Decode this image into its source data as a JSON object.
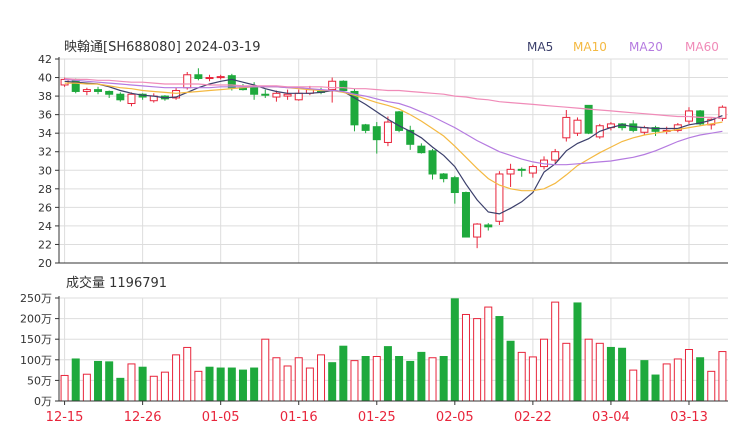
{
  "header": {
    "title": "映翰通[SH688080] 2024-03-19"
  },
  "legend": [
    {
      "label": "MA5",
      "color": "#3b3f6b"
    },
    {
      "label": "MA10",
      "color": "#f4b942"
    },
    {
      "label": "MA20",
      "color": "#b57be0"
    },
    {
      "label": "MA60",
      "color": "#f08bb8"
    }
  ],
  "colors": {
    "up": "#e8253b",
    "down": "#1ea93c",
    "grid": "#dddddd",
    "axis": "#333333"
  },
  "volume_title": {
    "label": "成交量 1196791"
  },
  "chart_data": [
    {
      "type": "candlestick",
      "ylim": [
        20,
        42
      ],
      "yticks": [
        20,
        22,
        24,
        26,
        28,
        30,
        32,
        34,
        36,
        38,
        40,
        42
      ],
      "xtick_labels": [
        "12-15",
        "12-26",
        "01-05",
        "01-16",
        "01-25",
        "02-05",
        "02-22",
        "03-04",
        "03-13"
      ],
      "xtick_index": [
        0,
        7,
        14,
        21,
        28,
        35,
        42,
        49,
        56
      ],
      "ohlc": [
        [
          39.2,
          40.0,
          39.0,
          39.8
        ],
        [
          39.8,
          39.9,
          38.3,
          38.5
        ],
        [
          38.5,
          38.9,
          38.1,
          38.7
        ],
        [
          38.7,
          39.0,
          38.2,
          38.5
        ],
        [
          38.5,
          38.6,
          37.8,
          38.2
        ],
        [
          38.2,
          38.4,
          37.4,
          37.6
        ],
        [
          37.2,
          38.4,
          36.9,
          38.2
        ],
        [
          38.2,
          38.3,
          37.6,
          37.9
        ],
        [
          37.5,
          38.3,
          37.3,
          38.0
        ],
        [
          38.0,
          38.1,
          37.5,
          37.7
        ],
        [
          37.8,
          38.9,
          37.6,
          38.6
        ],
        [
          38.9,
          40.6,
          38.7,
          40.3
        ],
        [
          40.3,
          41.0,
          39.7,
          39.9
        ],
        [
          39.9,
          40.3,
          39.6,
          40.0
        ],
        [
          40.1,
          40.3,
          39.8,
          40.1
        ],
        [
          40.2,
          40.4,
          38.6,
          38.9
        ],
        [
          38.9,
          39.3,
          38.6,
          38.7
        ],
        [
          38.9,
          39.5,
          37.6,
          38.2
        ],
        [
          38.2,
          38.7,
          37.8,
          38.1
        ],
        [
          37.9,
          38.6,
          37.4,
          38.3
        ],
        [
          38.0,
          38.7,
          37.6,
          38.2
        ],
        [
          37.6,
          38.7,
          37.5,
          38.3
        ],
        [
          38.3,
          39.1,
          38.1,
          38.7
        ],
        [
          38.5,
          38.9,
          38.2,
          38.4
        ],
        [
          38.7,
          40.0,
          37.3,
          39.6
        ],
        [
          39.6,
          39.7,
          38.5,
          38.6
        ],
        [
          38.5,
          38.8,
          34.2,
          34.9
        ],
        [
          34.9,
          35.0,
          34.0,
          34.3
        ],
        [
          34.7,
          35.2,
          31.8,
          33.3
        ],
        [
          33.0,
          35.8,
          32.6,
          35.2
        ],
        [
          36.3,
          36.4,
          34.1,
          34.3
        ],
        [
          34.3,
          34.8,
          32.2,
          32.8
        ],
        [
          32.6,
          32.9,
          31.8,
          31.9
        ],
        [
          32.1,
          32.3,
          29.0,
          29.6
        ],
        [
          29.6,
          29.7,
          28.7,
          29.1
        ],
        [
          29.2,
          29.4,
          26.4,
          27.6
        ],
        [
          27.6,
          27.7,
          22.8,
          22.8
        ],
        [
          22.8,
          24.3,
          21.6,
          24.2
        ],
        [
          24.1,
          24.3,
          23.5,
          23.9
        ],
        [
          24.5,
          29.9,
          24.1,
          29.6
        ],
        [
          29.6,
          30.7,
          28.2,
          30.1
        ],
        [
          30.1,
          30.3,
          29.3,
          30.0
        ],
        [
          29.7,
          30.6,
          29.2,
          30.4
        ],
        [
          30.4,
          31.5,
          30.1,
          31.1
        ],
        [
          31.1,
          32.3,
          30.8,
          32.0
        ],
        [
          33.5,
          36.5,
          33.1,
          35.7
        ],
        [
          34.0,
          35.7,
          33.7,
          35.4
        ],
        [
          37.0,
          37.0,
          33.9,
          34.0
        ],
        [
          33.6,
          35.0,
          33.4,
          34.8
        ],
        [
          34.6,
          35.2,
          34.3,
          35.0
        ],
        [
          35.0,
          35.1,
          34.3,
          34.6
        ],
        [
          35.0,
          35.4,
          34.1,
          34.3
        ],
        [
          34.1,
          34.8,
          33.8,
          34.6
        ],
        [
          34.6,
          34.8,
          33.7,
          34.2
        ],
        [
          34.2,
          34.7,
          33.9,
          34.3
        ],
        [
          34.3,
          35.1,
          34.1,
          34.9
        ],
        [
          35.3,
          36.8,
          35.0,
          36.4
        ],
        [
          36.4,
          36.5,
          34.8,
          35.0
        ],
        [
          34.9,
          35.6,
          34.4,
          35.5
        ],
        [
          35.6,
          37.0,
          35.3,
          36.8
        ]
      ],
      "series": [
        {
          "name": "MA5",
          "values": [
            39.6,
            39.5,
            39.4,
            39.3,
            39.0,
            38.6,
            38.3,
            38.1,
            38.0,
            37.8,
            37.9,
            38.4,
            38.9,
            39.3,
            39.6,
            39.8,
            39.5,
            39.2,
            38.8,
            38.5,
            38.3,
            38.3,
            38.3,
            38.4,
            38.6,
            38.5,
            37.8,
            37.1,
            36.3,
            35.5,
            34.8,
            34.2,
            33.5,
            32.5,
            31.6,
            30.4,
            28.5,
            26.8,
            25.5,
            25.3,
            25.9,
            26.6,
            27.6,
            29.8,
            30.7,
            32.1,
            32.9,
            33.4,
            34.2,
            34.6,
            34.9,
            34.7,
            34.6,
            34.5,
            34.5,
            34.5,
            34.9,
            35.1,
            35.4,
            35.9
          ]
        },
        {
          "name": "MA10",
          "values": [
            39.4,
            39.4,
            39.3,
            39.3,
            39.1,
            38.9,
            38.8,
            38.6,
            38.5,
            38.4,
            38.3,
            38.4,
            38.5,
            38.6,
            38.7,
            38.8,
            38.9,
            39.0,
            39.0,
            39.0,
            38.9,
            38.8,
            38.7,
            38.6,
            38.6,
            38.4,
            38.1,
            37.7,
            37.3,
            37.0,
            36.6,
            36.0,
            35.3,
            34.5,
            33.7,
            32.6,
            31.4,
            30.2,
            29.1,
            28.4,
            28.0,
            27.8,
            27.8,
            28.0,
            28.6,
            29.5,
            30.5,
            31.2,
            31.9,
            32.5,
            33.1,
            33.5,
            33.8,
            34.0,
            34.2,
            34.4,
            34.6,
            34.8,
            35.0,
            35.2
          ]
        },
        {
          "name": "MA20",
          "values": [
            39.8,
            39.7,
            39.6,
            39.5,
            39.4,
            39.3,
            39.2,
            39.1,
            39.0,
            38.9,
            38.9,
            38.9,
            38.9,
            38.9,
            39.0,
            39.0,
            39.0,
            39.0,
            39.0,
            39.0,
            38.9,
            38.9,
            38.8,
            38.7,
            38.6,
            38.5,
            38.2,
            38.0,
            37.7,
            37.4,
            37.2,
            36.8,
            36.3,
            35.8,
            35.2,
            34.6,
            33.9,
            33.2,
            32.6,
            32.0,
            31.6,
            31.2,
            30.9,
            30.7,
            30.6,
            30.6,
            30.7,
            30.8,
            30.9,
            31.0,
            31.2,
            31.4,
            31.7,
            32.1,
            32.6,
            33.1,
            33.5,
            33.8,
            34.0,
            34.2
          ]
        },
        {
          "name": "MA60",
          "values": [
            39.9,
            39.8,
            39.8,
            39.7,
            39.7,
            39.6,
            39.5,
            39.5,
            39.4,
            39.3,
            39.3,
            39.3,
            39.3,
            39.2,
            39.2,
            39.2,
            39.1,
            39.1,
            39.1,
            39.1,
            39.0,
            39.0,
            39.0,
            39.0,
            38.9,
            38.9,
            38.8,
            38.8,
            38.7,
            38.6,
            38.6,
            38.5,
            38.4,
            38.3,
            38.2,
            38.0,
            37.9,
            37.7,
            37.6,
            37.4,
            37.3,
            37.2,
            37.1,
            37.0,
            36.9,
            36.8,
            36.7,
            36.6,
            36.5,
            36.4,
            36.3,
            36.2,
            36.1,
            36.0,
            35.9,
            35.8,
            35.8,
            35.7,
            35.7,
            35.6
          ]
        }
      ]
    },
    {
      "type": "bar",
      "title": "成交量 1196791",
      "ylim": [
        0,
        250
      ],
      "yticks": [
        0,
        50,
        100,
        150,
        200,
        250
      ],
      "ytick_labels": [
        "0万",
        "50万",
        "100万",
        "150万",
        "200万",
        "250万"
      ],
      "values": [
        62,
        102,
        65,
        96,
        95,
        55,
        90,
        82,
        60,
        70,
        112,
        130,
        72,
        82,
        80,
        80,
        75,
        80,
        150,
        105,
        85,
        105,
        80,
        112,
        93,
        133,
        98,
        108,
        108,
        132,
        108,
        96,
        118,
        105,
        108,
        248,
        210,
        200,
        228,
        205,
        145,
        118,
        107,
        150,
        240,
        140,
        238,
        150,
        140,
        130,
        128,
        75,
        98,
        63,
        90,
        102,
        125,
        105,
        72,
        120
      ],
      "directions": [
        "u",
        "d",
        "u",
        "d",
        "d",
        "d",
        "u",
        "d",
        "u",
        "u",
        "u",
        "u",
        "u",
        "d",
        "d",
        "d",
        "d",
        "d",
        "u",
        "u",
        "u",
        "u",
        "u",
        "u",
        "d",
        "d",
        "u",
        "d",
        "u",
        "d",
        "d",
        "d",
        "d",
        "u",
        "d",
        "d",
        "u",
        "u",
        "u",
        "d",
        "d",
        "u",
        "u",
        "u",
        "u",
        "u",
        "d",
        "u",
        "u",
        "d",
        "d",
        "u",
        "d",
        "d",
        "u",
        "u",
        "u",
        "d",
        "u",
        "u"
      ]
    }
  ]
}
